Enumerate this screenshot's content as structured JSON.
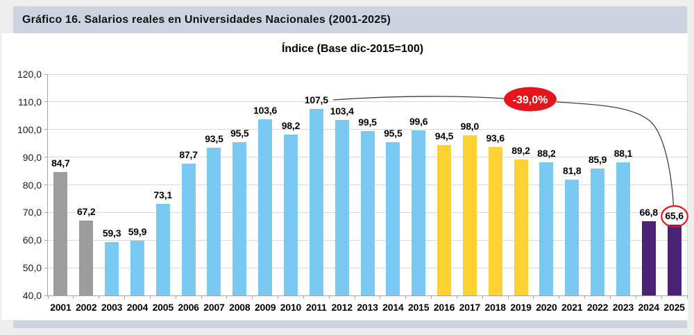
{
  "page": {
    "header_title": "Gráfico 16. Salarios reales en Universidades Nacionales (2001-2025)",
    "colors": {
      "page_bg": "#EDEDED",
      "band_bg": "#CED3E0",
      "panel_bg": "#FFFFFF"
    }
  },
  "chart_data": {
    "type": "bar",
    "title": "Índice (Base dic-2015=100)",
    "categories": [
      "2001",
      "2002",
      "2003",
      "2004",
      "2005",
      "2006",
      "2007",
      "2008",
      "2009",
      "2010",
      "2011",
      "2012",
      "2013",
      "2014",
      "2015",
      "2016",
      "2017",
      "2018",
      "2019",
      "2020",
      "2021",
      "2022",
      "2023",
      "2024",
      "2025"
    ],
    "values": [
      84.7,
      67.2,
      59.3,
      59.9,
      73.1,
      87.7,
      93.5,
      95.5,
      103.6,
      98.2,
      107.5,
      103.4,
      99.5,
      95.5,
      99.6,
      94.5,
      98.0,
      93.6,
      89.2,
      88.2,
      81.8,
      85.9,
      88.1,
      66.8,
      65.6
    ],
    "value_labels": [
      "84,7",
      "67,2",
      "59,3",
      "59,9",
      "73,1",
      "87,7",
      "93,5",
      "95,5",
      "103,6",
      "98,2",
      "107,5",
      "103,4",
      "99,5",
      "95,5",
      "99,6",
      "94,5",
      "98,0",
      "93,6",
      "89,2",
      "88,2",
      "81,8",
      "85,9",
      "88,1",
      "66,8",
      "65,6"
    ],
    "bar_colors": [
      "#9C9C9C",
      "#9C9C9C",
      "#7AC9F2",
      "#7AC9F2",
      "#7AC9F2",
      "#7AC9F2",
      "#7AC9F2",
      "#7AC9F2",
      "#7AC9F2",
      "#7AC9F2",
      "#7AC9F2",
      "#7AC9F2",
      "#7AC9F2",
      "#7AC9F2",
      "#7AC9F2",
      "#FFD233",
      "#FFD233",
      "#FFD233",
      "#FFD233",
      "#7AC9F2",
      "#7AC9F2",
      "#7AC9F2",
      "#7AC9F2",
      "#4B2376",
      "#4B2376"
    ],
    "xlabel": "",
    "ylabel": "",
    "ylim": [
      40,
      120
    ],
    "ytick_step": 10,
    "ytick_labels": [
      "40,0",
      "50,0",
      "60,0",
      "70,0",
      "80,0",
      "90,0",
      "100,0",
      "110,0",
      "120,0"
    ],
    "grid": true,
    "legend": false,
    "annotation": {
      "label": "-39,0%",
      "fill_color": "#E8141D",
      "text_color": "#FFFFFF",
      "from_year": "2011",
      "to_year": "2025",
      "circled_value_label": "65,6",
      "circle_color": "#E8141D"
    }
  }
}
